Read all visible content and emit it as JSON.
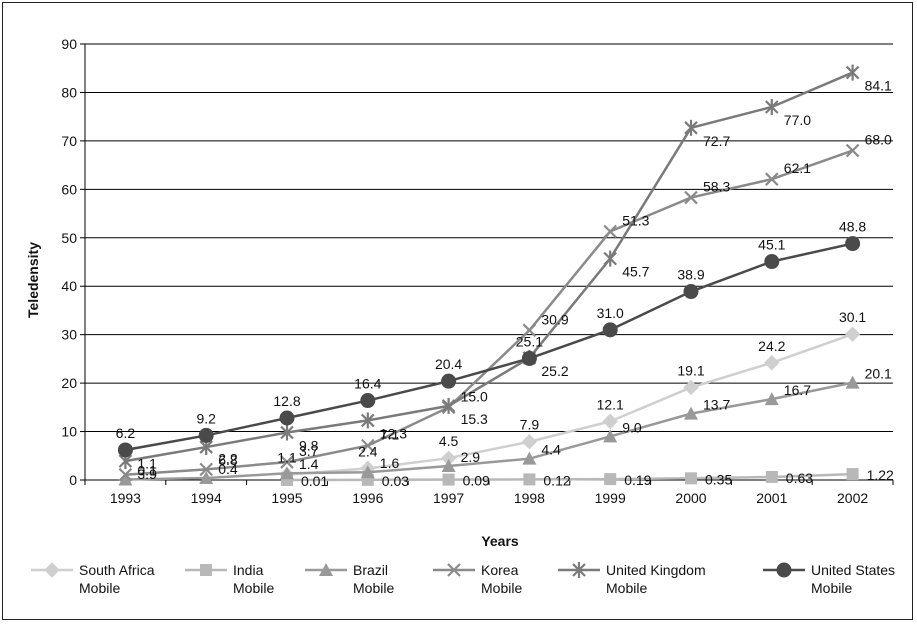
{
  "chart_data": {
    "type": "line",
    "xlabel": "Years",
    "ylabel": "Teledensity",
    "ylim": [
      0,
      90
    ],
    "yticks": [
      "0",
      "10",
      "20",
      "30",
      "40",
      "50",
      "60",
      "70",
      "80",
      "90"
    ],
    "categories": [
      "1993",
      "1994",
      "1995",
      "1996",
      "1997",
      "1998",
      "1999",
      "2000",
      "2001",
      "2002"
    ],
    "grid": "horizontal",
    "legend_position": "bottom",
    "series": [
      {
        "name": "South Africa Mobile",
        "legend_lines": [
          "South Africa",
          "Mobile"
        ],
        "color": "#cfcfcf",
        "marker": "diamond",
        "values": [
          null,
          null,
          1.1,
          2.4,
          4.5,
          7.9,
          12.1,
          19.1,
          24.2,
          30.1
        ],
        "labels": [
          "",
          "",
          "1.1",
          "2.4",
          "4.5",
          "7.9",
          "12.1",
          "19.1",
          "24.2",
          "30.1"
        ]
      },
      {
        "name": "India Mobile",
        "legend_lines": [
          "India",
          "Mobile"
        ],
        "color": "#b8b8b8",
        "marker": "square",
        "values": [
          null,
          null,
          0.01,
          0.03,
          0.09,
          0.12,
          0.19,
          0.35,
          0.63,
          1.22
        ],
        "labels": [
          "",
          "",
          "0.01",
          "0.03",
          "0.09",
          "0.12",
          "0.19",
          "0.35",
          "0.63",
          "1.22"
        ]
      },
      {
        "name": "Brazil Mobile",
        "legend_lines": [
          "Brazil",
          "Mobile"
        ],
        "color": "#999999",
        "marker": "triangle",
        "values": [
          0.1,
          0.4,
          1.4,
          1.6,
          2.9,
          4.4,
          9.0,
          13.7,
          16.7,
          20.1
        ],
        "labels": [
          "0.1",
          "0.4",
          "1.4",
          "1.6",
          "2.9",
          "4.4",
          "9.0",
          "13.7",
          "16.7",
          "20.1"
        ]
      },
      {
        "name": "Korea Mobile",
        "legend_lines": [
          "Korea",
          "Mobile"
        ],
        "color": "#8a8a8a",
        "marker": "x",
        "values": [
          1.1,
          2.2,
          3.7,
          7.1,
          15.0,
          30.9,
          51.3,
          58.3,
          62.1,
          68.0
        ],
        "labels": [
          "1.1",
          "2.2",
          "3.7",
          "7.1",
          "15.0",
          "30.9",
          "51.3",
          "58.3",
          "62.1",
          "68.0"
        ]
      },
      {
        "name": "United Kingdom Mobile",
        "legend_lines": [
          "United Kingdom",
          "Mobile"
        ],
        "color": "#7a7a7a",
        "marker": "star",
        "values": [
          3.9,
          6.8,
          9.8,
          12.3,
          15.3,
          25.2,
          45.7,
          72.7,
          77.0,
          84.1
        ],
        "labels": [
          "3.9",
          "6.8",
          "9.8",
          "12.3",
          "15.3",
          "25.2",
          "45.7",
          "72.7",
          "77.0",
          "84.1"
        ]
      },
      {
        "name": "United States Mobile",
        "legend_lines": [
          "United States",
          "Mobile"
        ],
        "color": "#4a4a4a",
        "marker": "circle",
        "values": [
          6.2,
          9.2,
          12.8,
          16.4,
          20.4,
          25.1,
          31.0,
          38.9,
          45.1,
          48.8
        ],
        "labels": [
          "6.2",
          "9.2",
          "12.8",
          "16.4",
          "20.4",
          "25.1",
          "31.0",
          "38.9",
          "45.1",
          "48.8"
        ]
      }
    ]
  }
}
